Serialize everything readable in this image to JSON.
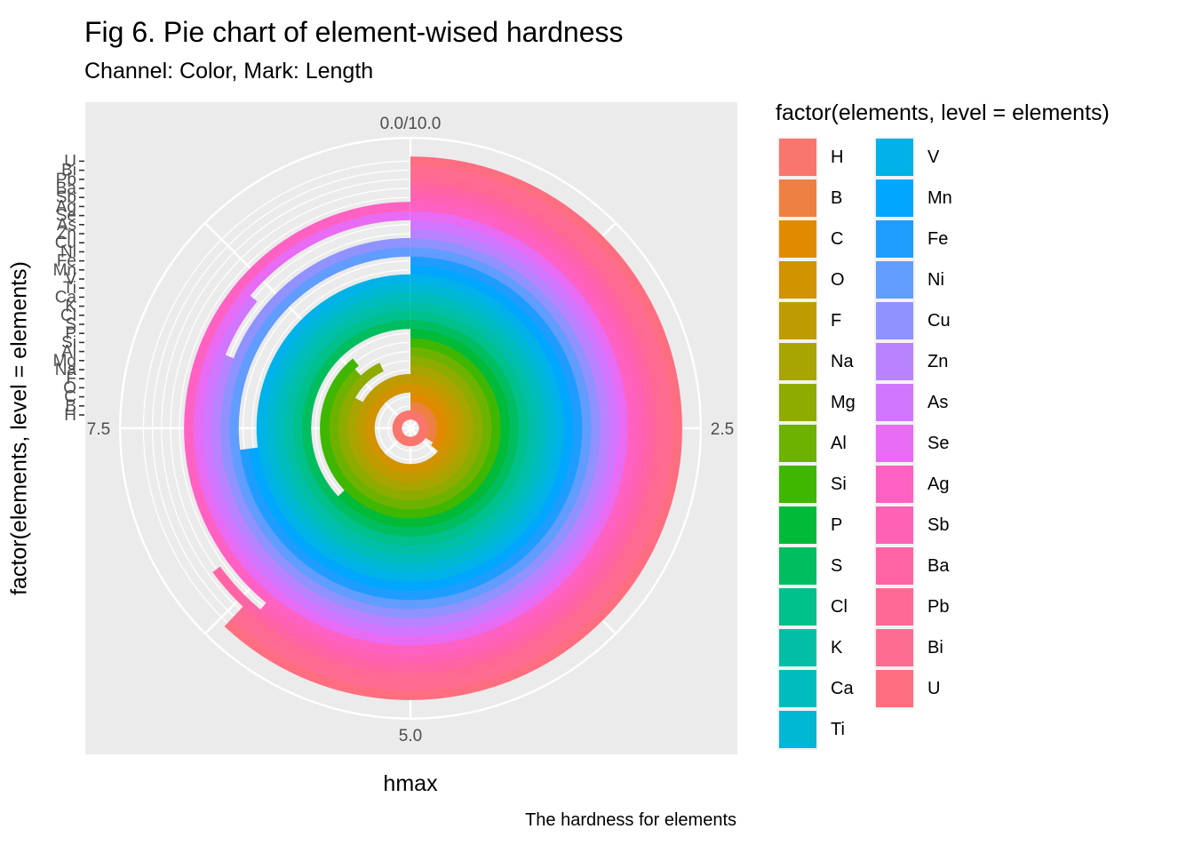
{
  "chart_data": {
    "type": "pie",
    "title": "Fig 6. Pie chart of element-wised hardness",
    "subtitle": "Channel: Color, Mark: Length",
    "xlabel": "hmax",
    "ylabel": "factor(elements, level = elements)",
    "caption": "The hardness for elements",
    "theta_range": [
      0,
      10
    ],
    "theta_ticks": [
      "0.0/10.0",
      "2.5",
      "5.0",
      "7.5"
    ],
    "legend_title": "factor(elements, level = elements)",
    "legend_placement": "right",
    "grid": true,
    "categories": [
      "H",
      "B",
      "C",
      "O",
      "F",
      "Na",
      "Mg",
      "Al",
      "Si",
      "P",
      "S",
      "Cl",
      "K",
      "Ca",
      "Ti",
      "V",
      "Mn",
      "Fe",
      "Ni",
      "Cu",
      "Zn",
      "As",
      "Se",
      "Ag",
      "Sb",
      "Ba",
      "Pb",
      "Bi",
      "U"
    ],
    "values": [
      10,
      3.4,
      3.6,
      10,
      10,
      8.3,
      9.3,
      8.8,
      8.9,
      6.3,
      10,
      10,
      10,
      10,
      10,
      10,
      7.3,
      7.3,
      10,
      10,
      8.1,
      8.6,
      10,
      10,
      6.1,
      6.5,
      6.2,
      6.2,
      6.2
    ],
    "colors": [
      "#F8766D",
      "#EE8043",
      "#E18A00",
      "#D19300",
      "#BE9C00",
      "#A8A400",
      "#8EAB00",
      "#6EB200",
      "#3FB700",
      "#00BA38",
      "#00BD5F",
      "#00C08B",
      "#00BFA6",
      "#00BDBD",
      "#00B8D3",
      "#00B2E7",
      "#00A6FF",
      "#1E9DFF",
      "#619CFF",
      "#8F92FF",
      "#B983FF",
      "#D076FF",
      "#E76BF3",
      "#FF61C3",
      "#FF62B5",
      "#FF65A5",
      "#FF6994",
      "#FF6C91",
      "#FF6D80"
    ],
    "y_ticks": [
      "H",
      "B",
      "C",
      "O",
      "F",
      "Na",
      "Mg",
      "Al",
      "Si",
      "P",
      "S",
      "Cl",
      "K",
      "Ca",
      "Ti",
      "V",
      "Mn",
      "Fe",
      "Ni",
      "Cu",
      "Zn",
      "As",
      "Se",
      "Ag",
      "Sb",
      "Ba",
      "Pb",
      "Bi",
      "U"
    ]
  }
}
